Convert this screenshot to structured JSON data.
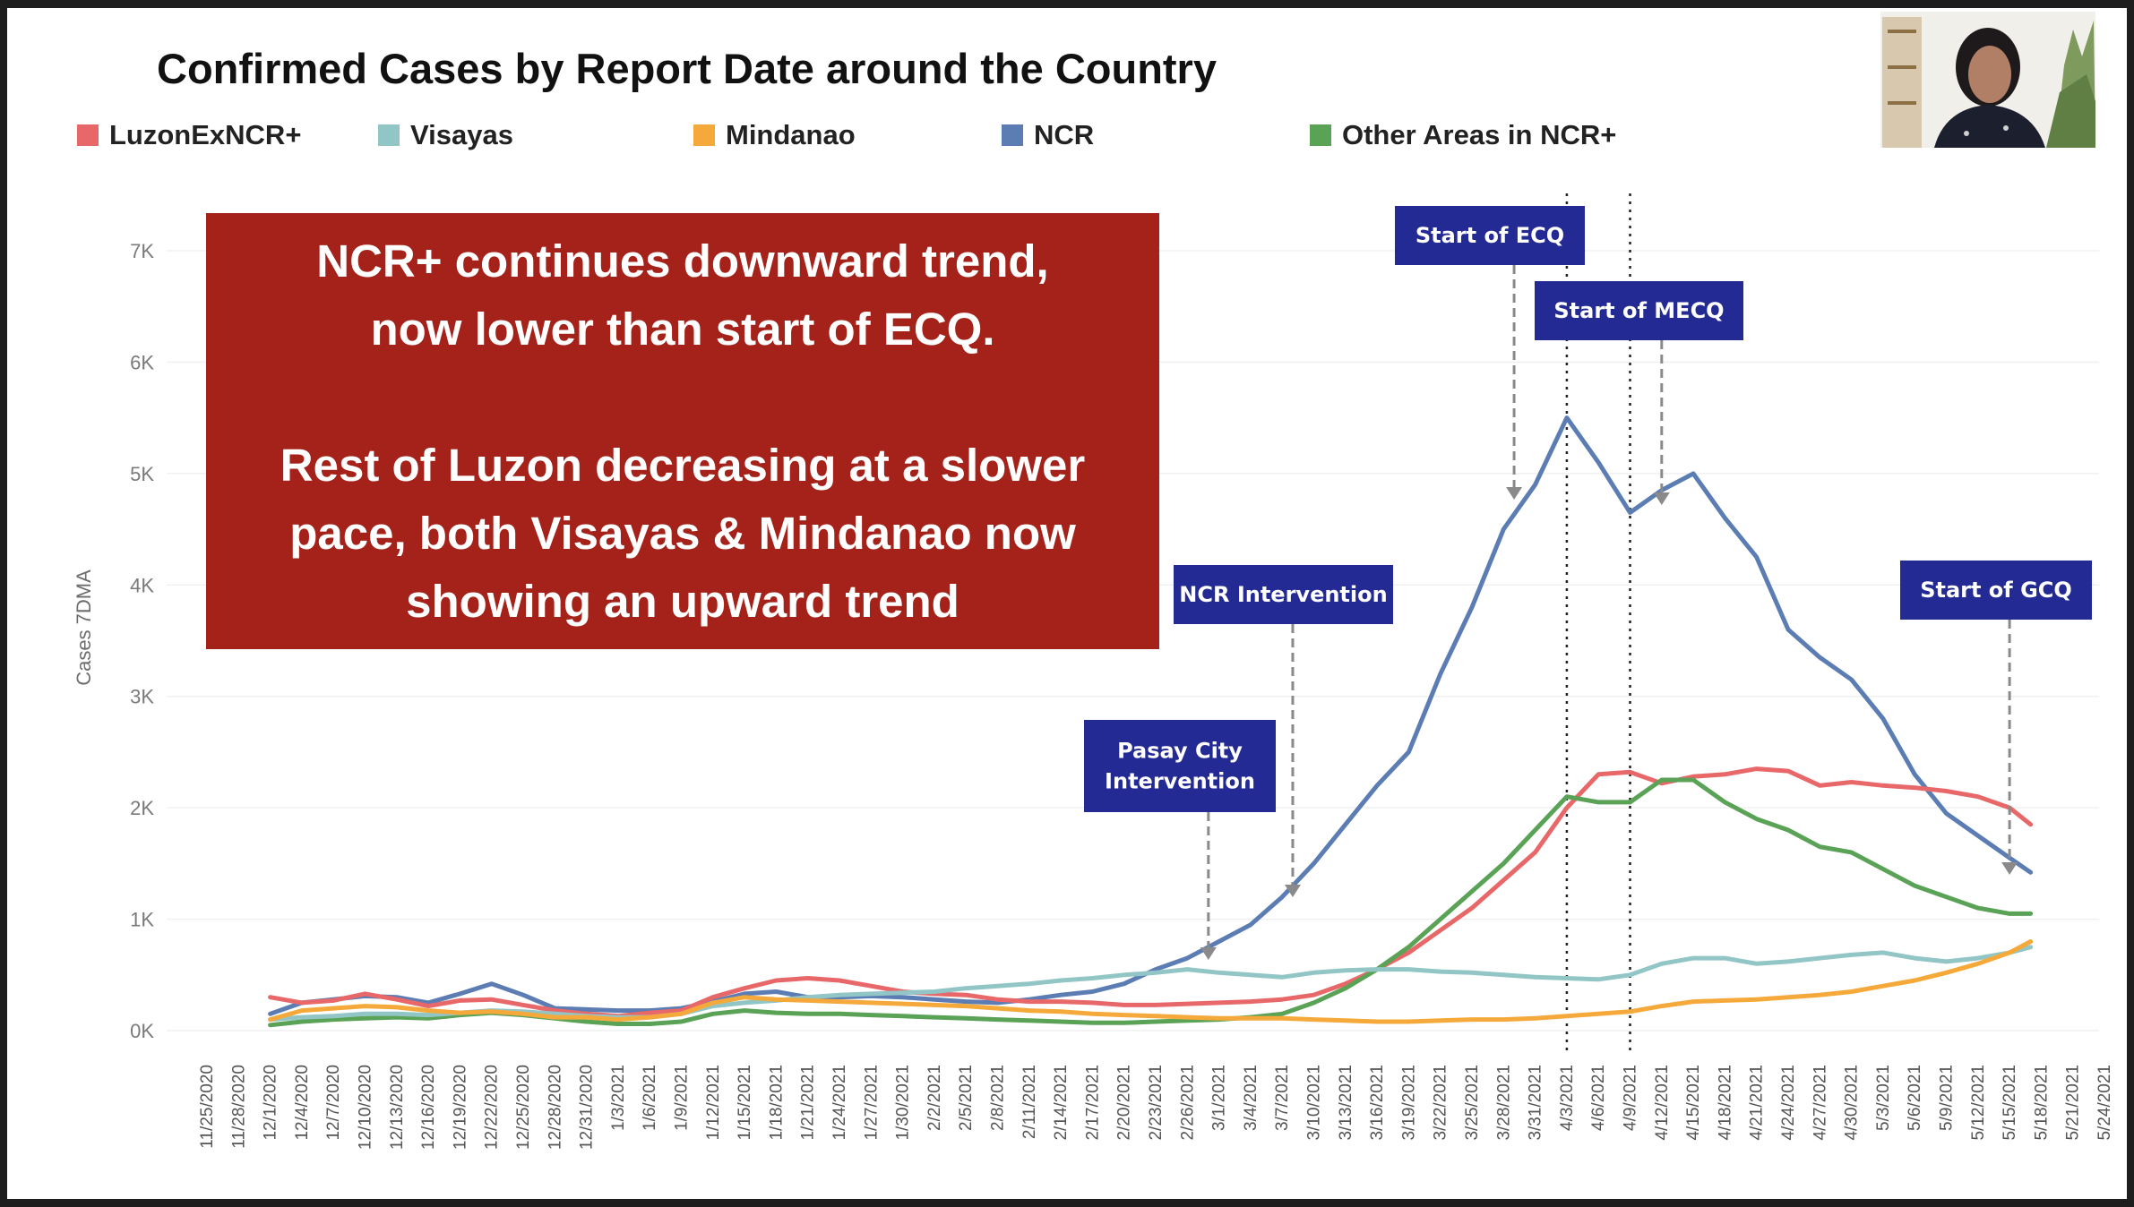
{
  "slide": {
    "title": "Confirmed Cases by Report Date around the Country",
    "callout": {
      "lines_top": [
        "NCR+ continues downward trend,",
        "now lower than start of ECQ."
      ],
      "lines_bottom": [
        "Rest of Luzon decreasing at a slower",
        "pace, both Visayas & Mindanao now",
        "showing an upward trend"
      ]
    }
  },
  "legend": [
    {
      "label": "LuzonExNCR+",
      "color": "#e8686a"
    },
    {
      "label": "Visayas",
      "color": "#92c6c6"
    },
    {
      "label": "Mindanao",
      "color": "#f5a93b"
    },
    {
      "label": "NCR",
      "color": "#5b7db4"
    },
    {
      "label": "Other Areas in NCR+",
      "color": "#5aa256"
    }
  ],
  "annotations": [
    {
      "lines": [
        "Pasay City",
        "Intervention"
      ],
      "date": "2/28/2021"
    },
    {
      "lines": [
        "NCR Intervention"
      ],
      "date": "3/8/2021"
    },
    {
      "lines": [
        "Start of ECQ"
      ],
      "date": "3/29/2021"
    },
    {
      "lines": [
        "Start of MECQ"
      ],
      "date": "4/12/2021"
    },
    {
      "lines": [
        "Start of GCQ"
      ],
      "date": "5/15/2021"
    }
  ],
  "reference_lines": [
    "4/3/2021",
    "4/9/2021"
  ],
  "chart_data": {
    "type": "line",
    "title": "Confirmed Cases by Report Date around the Country",
    "ylabel": "Cases 7DMA",
    "ylim": [
      0,
      7000
    ],
    "y_ticks": [
      "0K",
      "1K",
      "2K",
      "3K",
      "4K",
      "5K",
      "6K",
      "7K"
    ],
    "x_ticks": [
      "11/25/2020",
      "11/28/2020",
      "12/1/2020",
      "12/4/2020",
      "12/7/2020",
      "12/10/2020",
      "12/13/2020",
      "12/16/2020",
      "12/19/2020",
      "12/22/2020",
      "12/25/2020",
      "12/28/2020",
      "12/31/2020",
      "1/3/2021",
      "1/6/2021",
      "1/9/2021",
      "1/12/2021",
      "1/15/2021",
      "1/18/2021",
      "1/21/2021",
      "1/24/2021",
      "1/27/2021",
      "1/30/2021",
      "2/2/2021",
      "2/5/2021",
      "2/8/2021",
      "2/11/2021",
      "2/14/2021",
      "2/17/2021",
      "2/20/2021",
      "2/23/2021",
      "2/26/2021",
      "3/1/2021",
      "3/4/2021",
      "3/7/2021",
      "3/10/2021",
      "3/13/2021",
      "3/16/2021",
      "3/19/2021",
      "3/22/2021",
      "3/25/2021",
      "3/28/2021",
      "3/31/2021",
      "4/3/2021",
      "4/6/2021",
      "4/9/2021",
      "4/12/2021",
      "4/15/2021",
      "4/18/2021",
      "4/21/2021",
      "4/24/2021",
      "4/27/2021",
      "4/30/2021",
      "5/3/2021",
      "5/6/2021",
      "5/9/2021",
      "5/12/2021",
      "5/15/2021",
      "5/18/2021",
      "5/21/2021",
      "5/24/2021"
    ],
    "x": [
      "12/1/2020",
      "12/4/2020",
      "12/7/2020",
      "12/10/2020",
      "12/13/2020",
      "12/16/2020",
      "12/19/2020",
      "12/22/2020",
      "12/25/2020",
      "12/28/2020",
      "12/31/2020",
      "1/3/2021",
      "1/6/2021",
      "1/9/2021",
      "1/12/2021",
      "1/15/2021",
      "1/18/2021",
      "1/21/2021",
      "1/24/2021",
      "1/27/2021",
      "1/30/2021",
      "2/2/2021",
      "2/5/2021",
      "2/8/2021",
      "2/11/2021",
      "2/14/2021",
      "2/17/2021",
      "2/20/2021",
      "2/23/2021",
      "2/26/2021",
      "3/1/2021",
      "3/4/2021",
      "3/7/2021",
      "3/10/2021",
      "3/13/2021",
      "3/16/2021",
      "3/19/2021",
      "3/22/2021",
      "3/25/2021",
      "3/28/2021",
      "3/31/2021",
      "4/3/2021",
      "4/6/2021",
      "4/9/2021",
      "4/12/2021",
      "4/15/2021",
      "4/18/2021",
      "4/21/2021",
      "4/24/2021",
      "4/27/2021",
      "4/30/2021",
      "5/3/2021",
      "5/6/2021",
      "5/9/2021",
      "5/12/2021",
      "5/15/2021",
      "5/17/2021"
    ],
    "series": [
      {
        "name": "NCR",
        "color": "#5b7db4",
        "values": [
          150,
          250,
          280,
          310,
          300,
          250,
          330,
          420,
          320,
          200,
          190,
          180,
          180,
          200,
          260,
          330,
          350,
          300,
          300,
          310,
          300,
          280,
          260,
          250,
          280,
          320,
          350,
          420,
          550,
          650,
          800,
          950,
          1200,
          1500,
          1850,
          2200,
          2500,
          3200,
          3800,
          4500,
          4900,
          5500,
          5100,
          4650,
          4850,
          5000,
          4600,
          4250,
          3600,
          3350,
          3150,
          2800,
          2300,
          1950,
          1750,
          1550,
          1420
        ]
      },
      {
        "name": "LuzonExNCR+",
        "color": "#e8686a",
        "values": [
          300,
          250,
          270,
          330,
          280,
          220,
          270,
          280,
          230,
          180,
          150,
          130,
          160,
          180,
          300,
          380,
          450,
          470,
          450,
          400,
          350,
          330,
          320,
          280,
          260,
          260,
          250,
          230,
          230,
          240,
          250,
          260,
          280,
          320,
          420,
          550,
          700,
          900,
          1100,
          1350,
          1600,
          2000,
          2300,
          2320,
          2220,
          2280,
          2300,
          2350,
          2330,
          2200,
          2230,
          2200,
          2180,
          2150,
          2100,
          2000,
          1850
        ]
      },
      {
        "name": "Other Areas in NCR+",
        "color": "#5aa256",
        "values": [
          50,
          80,
          100,
          110,
          120,
          110,
          140,
          160,
          140,
          110,
          80,
          60,
          60,
          80,
          150,
          180,
          160,
          150,
          150,
          140,
          130,
          120,
          110,
          100,
          90,
          80,
          70,
          70,
          80,
          90,
          100,
          120,
          150,
          250,
          380,
          550,
          750,
          1000,
          1250,
          1500,
          1800,
          2100,
          2050,
          2050,
          2250,
          2250,
          2050,
          1900,
          1800,
          1650,
          1600,
          1450,
          1300,
          1200,
          1100,
          1050,
          1050
        ]
      },
      {
        "name": "Visayas",
        "color": "#92c6c6",
        "values": [
          100,
          120,
          130,
          150,
          150,
          140,
          160,
          180,
          170,
          150,
          130,
          120,
          120,
          150,
          220,
          250,
          270,
          300,
          320,
          330,
          340,
          350,
          380,
          400,
          420,
          450,
          470,
          500,
          520,
          550,
          520,
          500,
          480,
          520,
          540,
          550,
          550,
          530,
          520,
          500,
          480,
          470,
          460,
          500,
          600,
          650,
          650,
          600,
          620,
          650,
          680,
          700,
          650,
          620,
          650,
          700,
          750
        ]
      },
      {
        "name": "Mindanao",
        "color": "#f5a93b",
        "values": [
          100,
          180,
          200,
          220,
          210,
          180,
          160,
          170,
          150,
          120,
          120,
          100,
          120,
          150,
          250,
          300,
          280,
          270,
          260,
          250,
          240,
          230,
          220,
          200,
          180,
          170,
          150,
          140,
          130,
          120,
          110,
          110,
          110,
          100,
          90,
          80,
          80,
          90,
          100,
          100,
          110,
          130,
          150,
          170,
          220,
          260,
          270,
          280,
          300,
          320,
          350,
          400,
          450,
          520,
          600,
          700,
          800
        ]
      }
    ]
  }
}
